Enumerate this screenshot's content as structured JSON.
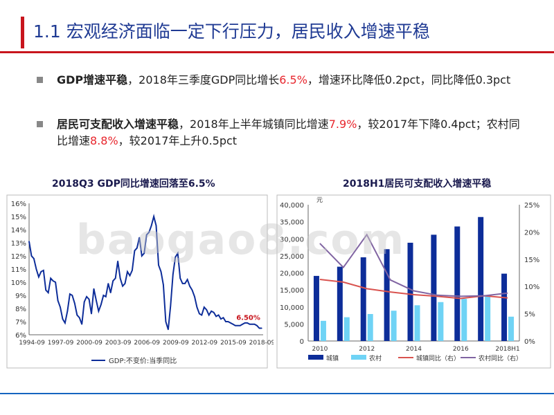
{
  "slide": {
    "title": "1.1 宏观经济面临一定下行压力，居民收入增速平稳",
    "bullets": [
      {
        "bold": "GDP增速平稳",
        "t1": "，2018年三季度GDP同比增长",
        "hl1": "6.5%",
        "t2": "，增速环比降低0.2pct，同比降低0.3pct"
      },
      {
        "bold": "居民可支配收入增速平稳",
        "t1": "，2018年上半年城镇同比增速",
        "hl1": "7.9%",
        "t2": "，较2017年下降0.4pct；农村同比增速",
        "hl2": "8.8%",
        "t3": "，较2017年上升0.5pct"
      }
    ],
    "watermark": "baogao8.com",
    "colors": {
      "accent": "#c8151d",
      "title": "#1f3a93",
      "highlight": "#e8262d"
    }
  },
  "chart_data": [
    {
      "type": "line",
      "title": "2018Q3 GDP同比增速回落至6.5%",
      "x_ticks": [
        "1994-09",
        "1997-09",
        "2000-09",
        "2003-09",
        "2006-09",
        "2009-09",
        "2012-09",
        "2015-09",
        "2018-09"
      ],
      "y_ticks": [
        "6%",
        "7%",
        "8%",
        "9%",
        "10%",
        "11%",
        "12%",
        "13%",
        "14%",
        "15%",
        "16%"
      ],
      "ylim": [
        6,
        16
      ],
      "xlim": [
        1994.5,
        2018.9
      ],
      "annotation": "6.50%",
      "legend": "GDP:不变价:当季同比",
      "series": [
        {
          "name": "GDP:不变价:当季同比",
          "x": [
            1994.5,
            1994.75,
            1995,
            1995.25,
            1995.5,
            1995.75,
            1996,
            1996.25,
            1996.5,
            1996.75,
            1997,
            1997.25,
            1997.5,
            1997.75,
            1998,
            1998.25,
            1998.5,
            1998.75,
            1999,
            1999.25,
            1999.5,
            1999.75,
            2000,
            2000.25,
            2000.5,
            2000.75,
            2001,
            2001.25,
            2001.5,
            2001.75,
            2002,
            2002.25,
            2002.5,
            2002.75,
            2003,
            2003.25,
            2003.5,
            2003.75,
            2004,
            2004.25,
            2004.5,
            2004.75,
            2005,
            2005.25,
            2005.5,
            2005.75,
            2006,
            2006.25,
            2006.5,
            2006.75,
            2007,
            2007.25,
            2007.5,
            2007.75,
            2008,
            2008.25,
            2008.5,
            2008.75,
            2009,
            2009.25,
            2009.5,
            2009.75,
            2010,
            2010.25,
            2010.5,
            2010.75,
            2011,
            2011.25,
            2011.5,
            2011.75,
            2012,
            2012.25,
            2012.5,
            2012.75,
            2013,
            2013.25,
            2013.5,
            2013.75,
            2014,
            2014.25,
            2014.5,
            2014.75,
            2015,
            2015.25,
            2015.5,
            2015.75,
            2016,
            2016.25,
            2016.5,
            2016.75,
            2017,
            2017.25,
            2017.5,
            2017.75,
            2018,
            2018.25,
            2018.5,
            2018.75
          ],
          "values": [
            13.1,
            12,
            11.8,
            11,
            10.4,
            10.8,
            10.9,
            9.4,
            9.2,
            10.3,
            10.1,
            10,
            8.6,
            8.1,
            7.2,
            6.9,
            7.8,
            9.1,
            9,
            8.4,
            7.5,
            7.3,
            6.8,
            8.5,
            8.9,
            8.7,
            7.6,
            9.5,
            8.6,
            7.8,
            8.3,
            9,
            8.9,
            9.9,
            9.2,
            10.1,
            10.3,
            11.6,
            10.3,
            9.7,
            9.9,
            10.8,
            10.5,
            10.9,
            12.4,
            12.6,
            13.4,
            12,
            12.2,
            13.6,
            13.8,
            14.3,
            15,
            14.3,
            11.3,
            10.8,
            9.8,
            7,
            6.4,
            8.2,
            10.6,
            11.9,
            12.2,
            10.3,
            9.9,
            9.9,
            10.2,
            9.7,
            9.4,
            8.9,
            8.1,
            7.6,
            7.5,
            8.1,
            7.9,
            7.5,
            7.8,
            7.7,
            7.4,
            7.5,
            7.2,
            7.3,
            7,
            7,
            6.9,
            6.8,
            6.7,
            6.7,
            6.7,
            6.8,
            6.9,
            6.9,
            6.8,
            6.8,
            6.8,
            6.7,
            6.5,
            6.5
          ]
        }
      ]
    },
    {
      "type": "bar+line",
      "title": "2018H1居民可支配收入增速平稳",
      "unit": "元",
      "categories": [
        "2010",
        "2011",
        "2012",
        "2013",
        "2014",
        "2015",
        "2016",
        "2017",
        "2018H1"
      ],
      "x_tick_labels": [
        "2010",
        "2012",
        "2014",
        "2016",
        "2018H1"
      ],
      "left_ticks": [
        "0",
        "5,000",
        "10,000",
        "15,000",
        "20,000",
        "25,000",
        "30,000",
        "35,000",
        "40,000"
      ],
      "right_ticks": [
        "0%",
        "5%",
        "10%",
        "15%",
        "20%",
        "25%"
      ],
      "ylim_left": [
        0,
        40000
      ],
      "ylim_right": [
        0,
        25
      ],
      "series": [
        {
          "name": "城镇",
          "axis": "left",
          "kind": "bar",
          "color": "#0d2d99",
          "values": [
            19109,
            21810,
            24565,
            26955,
            28844,
            31195,
            33616,
            36396,
            19770
          ]
        },
        {
          "name": "农村",
          "axis": "left",
          "kind": "bar",
          "color": "#6fd3f5",
          "values": [
            5919,
            6977,
            7917,
            8896,
            10489,
            11422,
            12363,
            13432,
            7142
          ]
        },
        {
          "name": "城镇同比（右）",
          "axis": "right",
          "kind": "line",
          "color": "#d9534f",
          "values": [
            11.3,
            10.8,
            9.6,
            9.0,
            8.5,
            8.2,
            7.8,
            8.3,
            7.9
          ]
        },
        {
          "name": "农村同比（右）",
          "axis": "right",
          "kind": "line",
          "color": "#8064a2",
          "values": [
            17.9,
            13.5,
            19.5,
            11.2,
            9.2,
            8.4,
            8.2,
            8.3,
            8.8
          ]
        }
      ]
    }
  ]
}
